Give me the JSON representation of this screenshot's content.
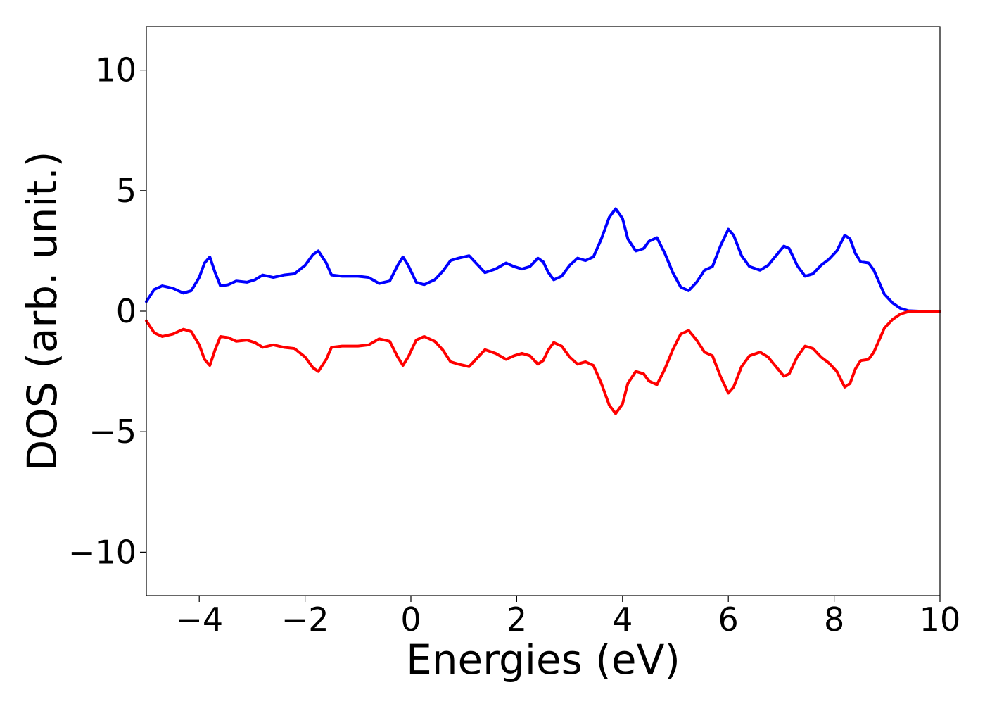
{
  "chart_data": {
    "type": "line",
    "title": "",
    "xlabel": "Energies (eV)",
    "ylabel": "DOS (arb. unit.)",
    "xlim": [
      -5,
      10
    ],
    "ylim": [
      -11.8,
      11.8
    ],
    "grid": false,
    "legend": "none",
    "x_ticks": [
      -4,
      -2,
      0,
      2,
      4,
      6,
      8,
      10
    ],
    "x_tick_labels": [
      "−4",
      "−2",
      "0",
      "2",
      "4",
      "6",
      "8",
      "10"
    ],
    "y_ticks": [
      -10,
      -5,
      0,
      5,
      10
    ],
    "y_tick_labels": [
      "−10",
      "−5",
      "0",
      "5",
      "10"
    ],
    "series": [
      {
        "color": "#0000ff",
        "points": [
          [
            -5.0,
            0.4
          ],
          [
            -4.85,
            0.9
          ],
          [
            -4.7,
            1.05
          ],
          [
            -4.5,
            0.95
          ],
          [
            -4.3,
            0.75
          ],
          [
            -4.15,
            0.85
          ],
          [
            -4.0,
            1.4
          ],
          [
            -3.9,
            2.0
          ],
          [
            -3.8,
            2.25
          ],
          [
            -3.7,
            1.6
          ],
          [
            -3.6,
            1.05
          ],
          [
            -3.45,
            1.1
          ],
          [
            -3.3,
            1.25
          ],
          [
            -3.1,
            1.2
          ],
          [
            -2.95,
            1.3
          ],
          [
            -2.8,
            1.5
          ],
          [
            -2.6,
            1.4
          ],
          [
            -2.4,
            1.5
          ],
          [
            -2.2,
            1.55
          ],
          [
            -2.0,
            1.9
          ],
          [
            -1.85,
            2.35
          ],
          [
            -1.75,
            2.5
          ],
          [
            -1.6,
            2.0
          ],
          [
            -1.5,
            1.5
          ],
          [
            -1.3,
            1.45
          ],
          [
            -1.0,
            1.45
          ],
          [
            -0.8,
            1.4
          ],
          [
            -0.6,
            1.15
          ],
          [
            -0.4,
            1.25
          ],
          [
            -0.25,
            1.9
          ],
          [
            -0.15,
            2.25
          ],
          [
            -0.05,
            1.9
          ],
          [
            0.1,
            1.2
          ],
          [
            0.25,
            1.1
          ],
          [
            0.45,
            1.3
          ],
          [
            0.6,
            1.65
          ],
          [
            0.75,
            2.1
          ],
          [
            0.9,
            2.2
          ],
          [
            1.1,
            2.3
          ],
          [
            1.25,
            1.95
          ],
          [
            1.4,
            1.6
          ],
          [
            1.6,
            1.75
          ],
          [
            1.8,
            2.0
          ],
          [
            1.95,
            1.85
          ],
          [
            2.1,
            1.75
          ],
          [
            2.25,
            1.85
          ],
          [
            2.4,
            2.2
          ],
          [
            2.5,
            2.05
          ],
          [
            2.6,
            1.6
          ],
          [
            2.7,
            1.3
          ],
          [
            2.85,
            1.45
          ],
          [
            3.0,
            1.9
          ],
          [
            3.15,
            2.2
          ],
          [
            3.3,
            2.1
          ],
          [
            3.45,
            2.25
          ],
          [
            3.6,
            3.0
          ],
          [
            3.75,
            3.9
          ],
          [
            3.87,
            4.25
          ],
          [
            4.0,
            3.85
          ],
          [
            4.1,
            3.0
          ],
          [
            4.25,
            2.5
          ],
          [
            4.4,
            2.6
          ],
          [
            4.5,
            2.9
          ],
          [
            4.65,
            3.05
          ],
          [
            4.8,
            2.4
          ],
          [
            4.95,
            1.6
          ],
          [
            5.1,
            1.0
          ],
          [
            5.25,
            0.85
          ],
          [
            5.4,
            1.2
          ],
          [
            5.55,
            1.7
          ],
          [
            5.7,
            1.85
          ],
          [
            5.85,
            2.7
          ],
          [
            6.0,
            3.4
          ],
          [
            6.1,
            3.15
          ],
          [
            6.25,
            2.3
          ],
          [
            6.4,
            1.85
          ],
          [
            6.6,
            1.7
          ],
          [
            6.75,
            1.9
          ],
          [
            6.9,
            2.3
          ],
          [
            7.05,
            2.7
          ],
          [
            7.15,
            2.6
          ],
          [
            7.3,
            1.9
          ],
          [
            7.45,
            1.45
          ],
          [
            7.6,
            1.55
          ],
          [
            7.75,
            1.9
          ],
          [
            7.9,
            2.15
          ],
          [
            8.05,
            2.5
          ],
          [
            8.2,
            3.15
          ],
          [
            8.3,
            3.0
          ],
          [
            8.4,
            2.4
          ],
          [
            8.5,
            2.05
          ],
          [
            8.65,
            2.0
          ],
          [
            8.75,
            1.7
          ],
          [
            8.85,
            1.2
          ],
          [
            8.95,
            0.7
          ],
          [
            9.1,
            0.35
          ],
          [
            9.25,
            0.12
          ],
          [
            9.4,
            0.02
          ],
          [
            9.6,
            0.0
          ],
          [
            10.0,
            0.0
          ]
        ]
      },
      {
        "color": "#ff0000",
        "points": [
          [
            -5.0,
            -0.4
          ],
          [
            -4.85,
            -0.9
          ],
          [
            -4.7,
            -1.05
          ],
          [
            -4.5,
            -0.95
          ],
          [
            -4.3,
            -0.75
          ],
          [
            -4.15,
            -0.85
          ],
          [
            -4.0,
            -1.4
          ],
          [
            -3.9,
            -2.0
          ],
          [
            -3.8,
            -2.25
          ],
          [
            -3.7,
            -1.6
          ],
          [
            -3.6,
            -1.05
          ],
          [
            -3.45,
            -1.1
          ],
          [
            -3.3,
            -1.25
          ],
          [
            -3.1,
            -1.2
          ],
          [
            -2.95,
            -1.3
          ],
          [
            -2.8,
            -1.5
          ],
          [
            -2.6,
            -1.4
          ],
          [
            -2.4,
            -1.5
          ],
          [
            -2.2,
            -1.55
          ],
          [
            -2.0,
            -1.9
          ],
          [
            -1.85,
            -2.35
          ],
          [
            -1.75,
            -2.5
          ],
          [
            -1.6,
            -2.0
          ],
          [
            -1.5,
            -1.5
          ],
          [
            -1.3,
            -1.45
          ],
          [
            -1.0,
            -1.45
          ],
          [
            -0.8,
            -1.4
          ],
          [
            -0.6,
            -1.15
          ],
          [
            -0.4,
            -1.25
          ],
          [
            -0.25,
            -1.9
          ],
          [
            -0.15,
            -2.25
          ],
          [
            -0.05,
            -1.9
          ],
          [
            0.1,
            -1.2
          ],
          [
            0.25,
            -1.05
          ],
          [
            0.45,
            -1.25
          ],
          [
            0.6,
            -1.6
          ],
          [
            0.75,
            -2.1
          ],
          [
            0.9,
            -2.2
          ],
          [
            1.1,
            -2.3
          ],
          [
            1.25,
            -1.95
          ],
          [
            1.4,
            -1.6
          ],
          [
            1.6,
            -1.75
          ],
          [
            1.8,
            -2.0
          ],
          [
            1.95,
            -1.85
          ],
          [
            2.1,
            -1.75
          ],
          [
            2.25,
            -1.85
          ],
          [
            2.4,
            -2.2
          ],
          [
            2.5,
            -2.05
          ],
          [
            2.6,
            -1.6
          ],
          [
            2.7,
            -1.3
          ],
          [
            2.85,
            -1.45
          ],
          [
            3.0,
            -1.9
          ],
          [
            3.15,
            -2.2
          ],
          [
            3.3,
            -2.1
          ],
          [
            3.45,
            -2.25
          ],
          [
            3.6,
            -3.0
          ],
          [
            3.75,
            -3.9
          ],
          [
            3.87,
            -4.25
          ],
          [
            4.0,
            -3.85
          ],
          [
            4.1,
            -3.0
          ],
          [
            4.25,
            -2.5
          ],
          [
            4.4,
            -2.6
          ],
          [
            4.5,
            -2.9
          ],
          [
            4.65,
            -3.05
          ],
          [
            4.8,
            -2.4
          ],
          [
            4.95,
            -1.6
          ],
          [
            5.1,
            -0.95
          ],
          [
            5.25,
            -0.8
          ],
          [
            5.4,
            -1.2
          ],
          [
            5.55,
            -1.7
          ],
          [
            5.7,
            -1.85
          ],
          [
            5.85,
            -2.7
          ],
          [
            6.0,
            -3.4
          ],
          [
            6.1,
            -3.15
          ],
          [
            6.25,
            -2.3
          ],
          [
            6.4,
            -1.85
          ],
          [
            6.6,
            -1.7
          ],
          [
            6.75,
            -1.9
          ],
          [
            6.9,
            -2.3
          ],
          [
            7.05,
            -2.7
          ],
          [
            7.15,
            -2.6
          ],
          [
            7.3,
            -1.9
          ],
          [
            7.45,
            -1.45
          ],
          [
            7.6,
            -1.55
          ],
          [
            7.75,
            -1.9
          ],
          [
            7.9,
            -2.15
          ],
          [
            8.05,
            -2.5
          ],
          [
            8.2,
            -3.15
          ],
          [
            8.3,
            -3.0
          ],
          [
            8.4,
            -2.4
          ],
          [
            8.5,
            -2.05
          ],
          [
            8.65,
            -2.0
          ],
          [
            8.75,
            -1.7
          ],
          [
            8.85,
            -1.2
          ],
          [
            8.95,
            -0.7
          ],
          [
            9.1,
            -0.35
          ],
          [
            9.25,
            -0.12
          ],
          [
            9.4,
            -0.02
          ],
          [
            9.6,
            0.0
          ],
          [
            10.0,
            0.0
          ]
        ]
      }
    ]
  }
}
